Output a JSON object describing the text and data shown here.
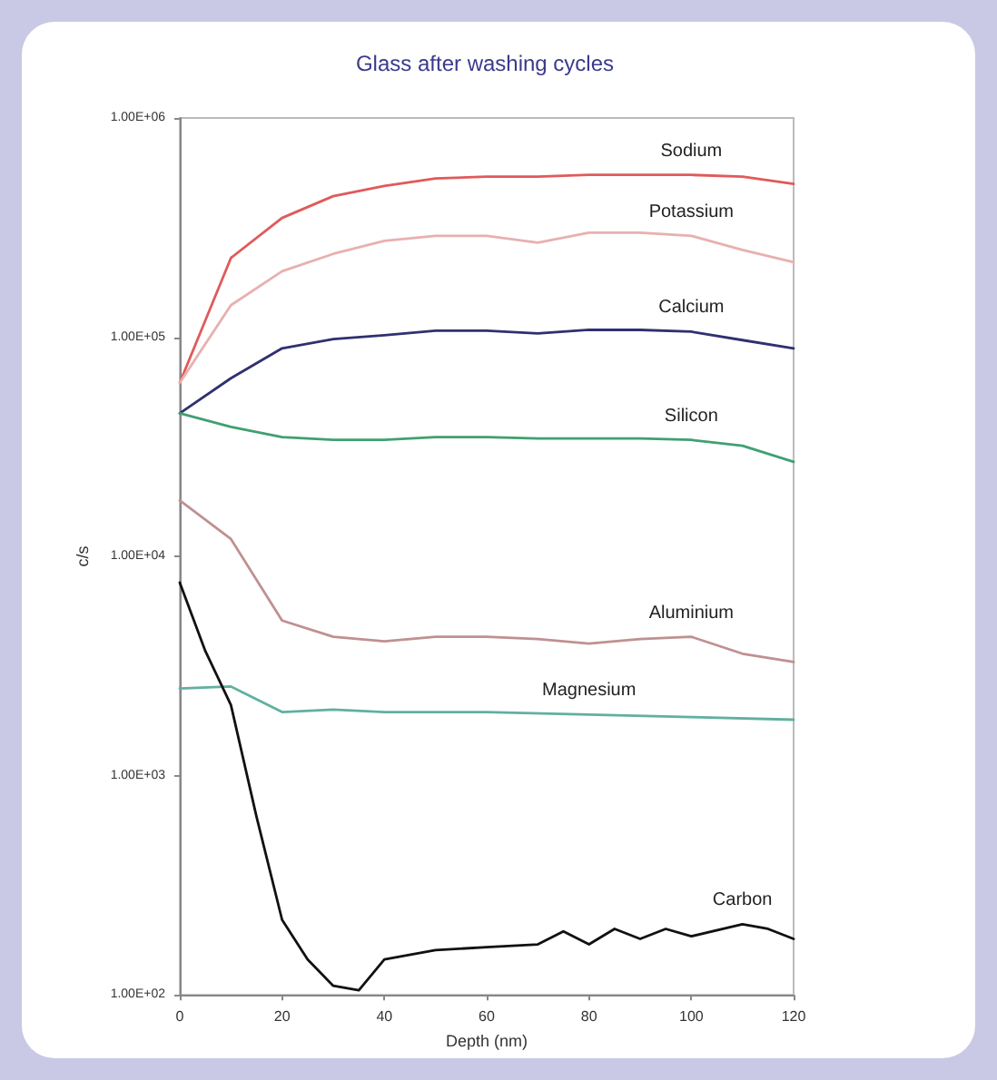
{
  "chart_data": {
    "type": "line",
    "title": "Glass after washing cycles",
    "xlabel": "Depth (nm)",
    "ylabel": "c/s",
    "log": "y",
    "grid": false,
    "legend": false,
    "marker": "none",
    "line_style": "solid",
    "xlim": [
      0,
      120
    ],
    "xticks": [
      0,
      20,
      40,
      60,
      80,
      100,
      120
    ],
    "ylim": [
      100,
      1000000
    ],
    "yticks": [
      {
        "value": 100,
        "label": "1.00E+02"
      },
      {
        "value": 1000,
        "label": "1.00E+03"
      },
      {
        "value": 10000,
        "label": "1.00E+04"
      },
      {
        "value": 100000,
        "label": "1.00E+05"
      },
      {
        "value": 1000000,
        "label": "1.00E+06"
      }
    ],
    "series": [
      {
        "name": "Sodium",
        "color": "#e05a5a",
        "x": [
          0,
          10,
          20,
          30,
          40,
          50,
          60,
          70,
          80,
          90,
          100,
          110,
          120
        ],
        "values": [
          62000,
          230000,
          350000,
          440000,
          490000,
          530000,
          540000,
          540000,
          550000,
          550000,
          550000,
          540000,
          500000
        ]
      },
      {
        "name": "Potassium",
        "color": "#e8b0b0",
        "x": [
          0,
          10,
          20,
          30,
          40,
          50,
          60,
          70,
          80,
          90,
          100,
          110,
          120
        ],
        "values": [
          62000,
          140000,
          200000,
          240000,
          275000,
          290000,
          290000,
          270000,
          300000,
          300000,
          290000,
          250000,
          220000
        ]
      },
      {
        "name": "Calcium",
        "color": "#303070",
        "x": [
          0,
          10,
          20,
          30,
          40,
          50,
          60,
          70,
          80,
          90,
          100,
          110,
          120
        ],
        "values": [
          45000,
          65000,
          89000,
          98000,
          102000,
          107000,
          107000,
          104000,
          108000,
          108000,
          106000,
          97000,
          89000
        ]
      },
      {
        "name": "Silicon",
        "color": "#40a070",
        "x": [
          0,
          10,
          20,
          30,
          40,
          50,
          60,
          70,
          80,
          90,
          100,
          110,
          120
        ],
        "values": [
          45000,
          39000,
          35000,
          34000,
          34000,
          35000,
          35000,
          34500,
          34500,
          34500,
          34000,
          32000,
          27000
        ]
      },
      {
        "name": "Aluminium",
        "color": "#c09090",
        "x": [
          0,
          10,
          20,
          30,
          40,
          50,
          60,
          70,
          80,
          90,
          100,
          110,
          120
        ],
        "values": [
          18000,
          12000,
          5100,
          4300,
          4100,
          4300,
          4300,
          4200,
          4000,
          4200,
          4300,
          3600,
          3300
        ]
      },
      {
        "name": "Magnesium",
        "color": "#60b0a0",
        "x": [
          0,
          10,
          20,
          30,
          40,
          60,
          80,
          100,
          120
        ],
        "values": [
          2500,
          2550,
          1950,
          2000,
          1950,
          1950,
          1900,
          1850,
          1800
        ]
      },
      {
        "name": "Carbon",
        "color": "#111111",
        "x": [
          0,
          5,
          10,
          15,
          20,
          25,
          30,
          35,
          40,
          50,
          60,
          70,
          75,
          80,
          85,
          90,
          95,
          100,
          110,
          115,
          120
        ],
        "values": [
          7600,
          3700,
          2100,
          650,
          220,
          145,
          110,
          105,
          145,
          160,
          165,
          170,
          195,
          170,
          200,
          180,
          200,
          185,
          210,
          200,
          180
        ]
      }
    ]
  }
}
